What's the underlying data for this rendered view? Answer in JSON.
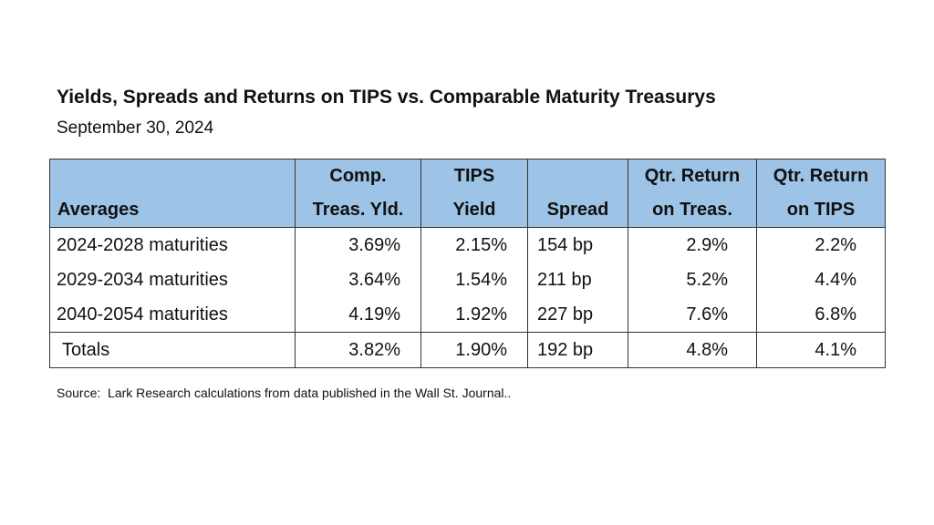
{
  "header": {
    "title": "Yields, Spreads and Returns on TIPS vs. Comparable Maturity Treasurys",
    "subtitle": "September 30, 2024"
  },
  "table": {
    "columns": [
      [
        "Averages"
      ],
      [
        "Comp.",
        "Treas. Yld."
      ],
      [
        "TIPS",
        "Yield"
      ],
      [
        "Spread"
      ],
      [
        "Qtr. Return",
        "on Treas."
      ],
      [
        "Qtr. Return",
        "on TIPS"
      ]
    ],
    "rows": [
      [
        "2024-2028 maturities",
        "3.69%",
        "2.15%",
        "154 bp",
        "2.9%",
        "2.2%"
      ],
      [
        "2029-2034 maturities",
        "3.64%",
        "1.54%",
        "211 bp",
        "5.2%",
        "4.4%"
      ],
      [
        "2040-2054 maturities",
        "4.19%",
        "1.92%",
        "227 bp",
        "7.6%",
        "6.8%"
      ]
    ],
    "totals": [
      "Totals",
      "3.82%",
      "1.90%",
      "192 bp",
      "4.8%",
      "4.1%"
    ]
  },
  "source": "Source:  Lark Research calculations from data published in the Wall St. Journal.."
}
